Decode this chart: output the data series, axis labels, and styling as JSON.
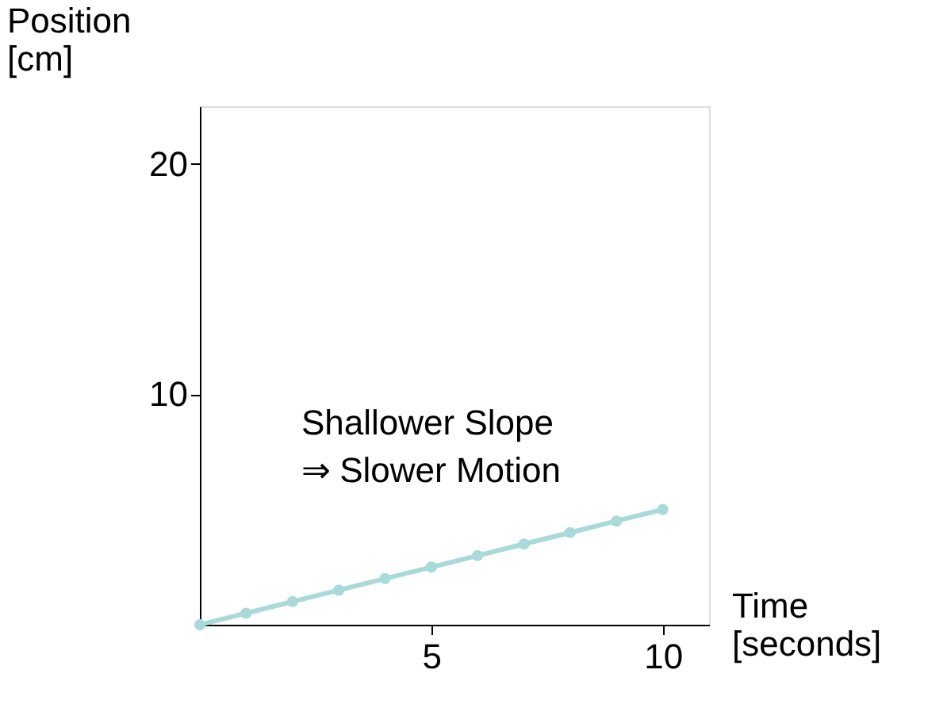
{
  "chart_data": {
    "type": "line",
    "xlabel": "Time\n[seconds]",
    "ylabel": "Position\n[cm]",
    "x": [
      0,
      1,
      2,
      3,
      4,
      5,
      6,
      7,
      8,
      9,
      10
    ],
    "series": [
      {
        "color": "#a9d9d9",
        "values": [
          0,
          0.5,
          1,
          1.5,
          2,
          2.5,
          3,
          3.5,
          4,
          4.5,
          5
        ]
      }
    ],
    "xlim": [
      0,
      11
    ],
    "ylim": [
      0,
      22.5
    ],
    "xticks": [
      5,
      10
    ],
    "yticks": [
      10,
      20
    ],
    "marker": "circle",
    "grid": false,
    "annotations": [
      "Shallower Slope\n⇒ Slower Motion"
    ]
  }
}
